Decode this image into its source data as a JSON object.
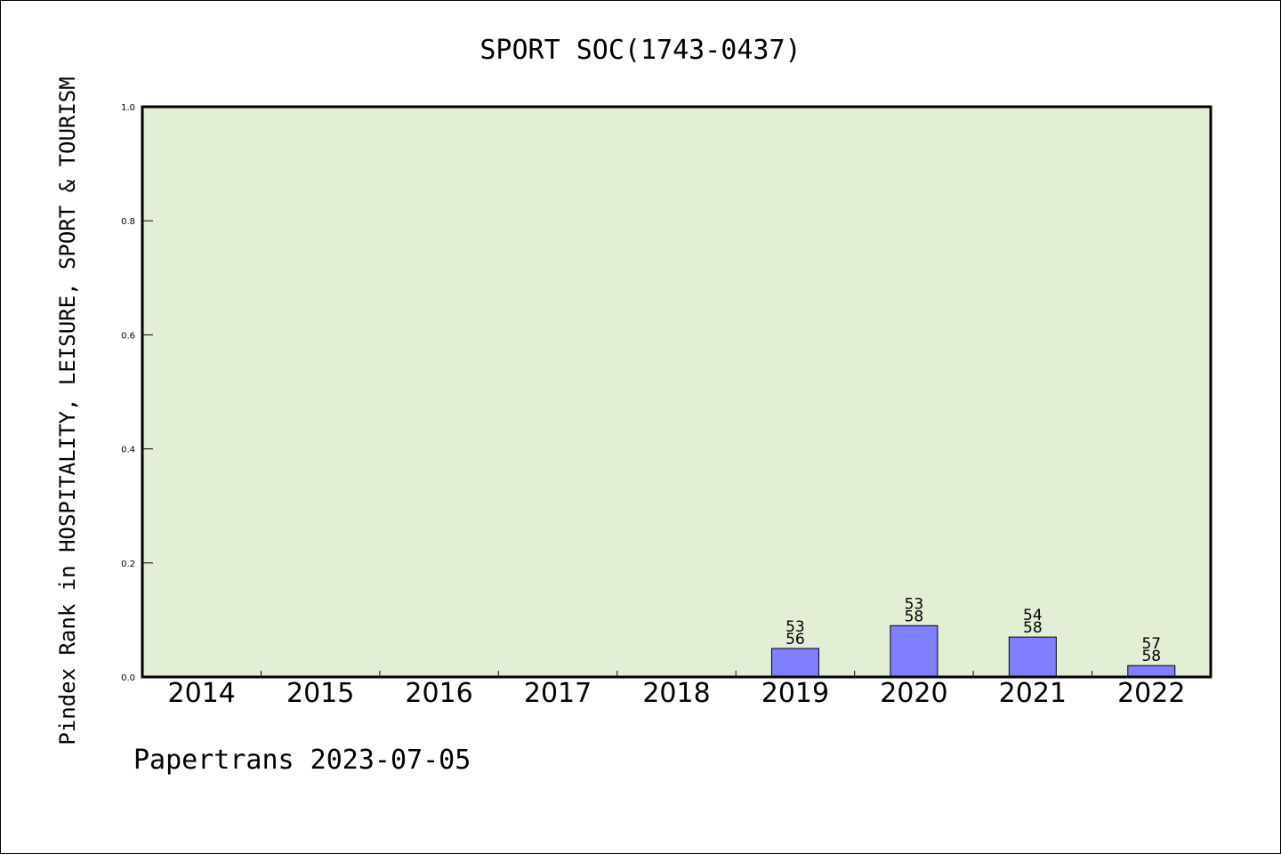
{
  "chart_data": {
    "type": "bar",
    "title": "SPORT SOC(1743-0437)",
    "ylabel": "Pindex Rank in HOSPITALITY, LEISURE, SPORT & TOURISM",
    "xlabel": "",
    "ylim": [
      0,
      1.0
    ],
    "yticks": [
      "0.0",
      "0.2",
      "0.4",
      "0.6",
      "0.8",
      "1.0"
    ],
    "grid": false,
    "categories": [
      "2014",
      "2015",
      "2016",
      "2017",
      "2018",
      "2019",
      "2020",
      "2021",
      "2022"
    ],
    "values": [
      0,
      0,
      0,
      0,
      0,
      0.05,
      0.09,
      0.07,
      0.02
    ],
    "rank_labels": [
      null,
      null,
      null,
      null,
      null,
      "53",
      "53",
      "54",
      "57"
    ],
    "total_labels": [
      null,
      null,
      null,
      null,
      null,
      "56",
      "58",
      "58",
      "58"
    ],
    "colors": {
      "plot_bg": "#e2efd5",
      "bar": "#8080ff",
      "axis": "#000000"
    }
  },
  "footer": "Papertrans 2023-07-05"
}
